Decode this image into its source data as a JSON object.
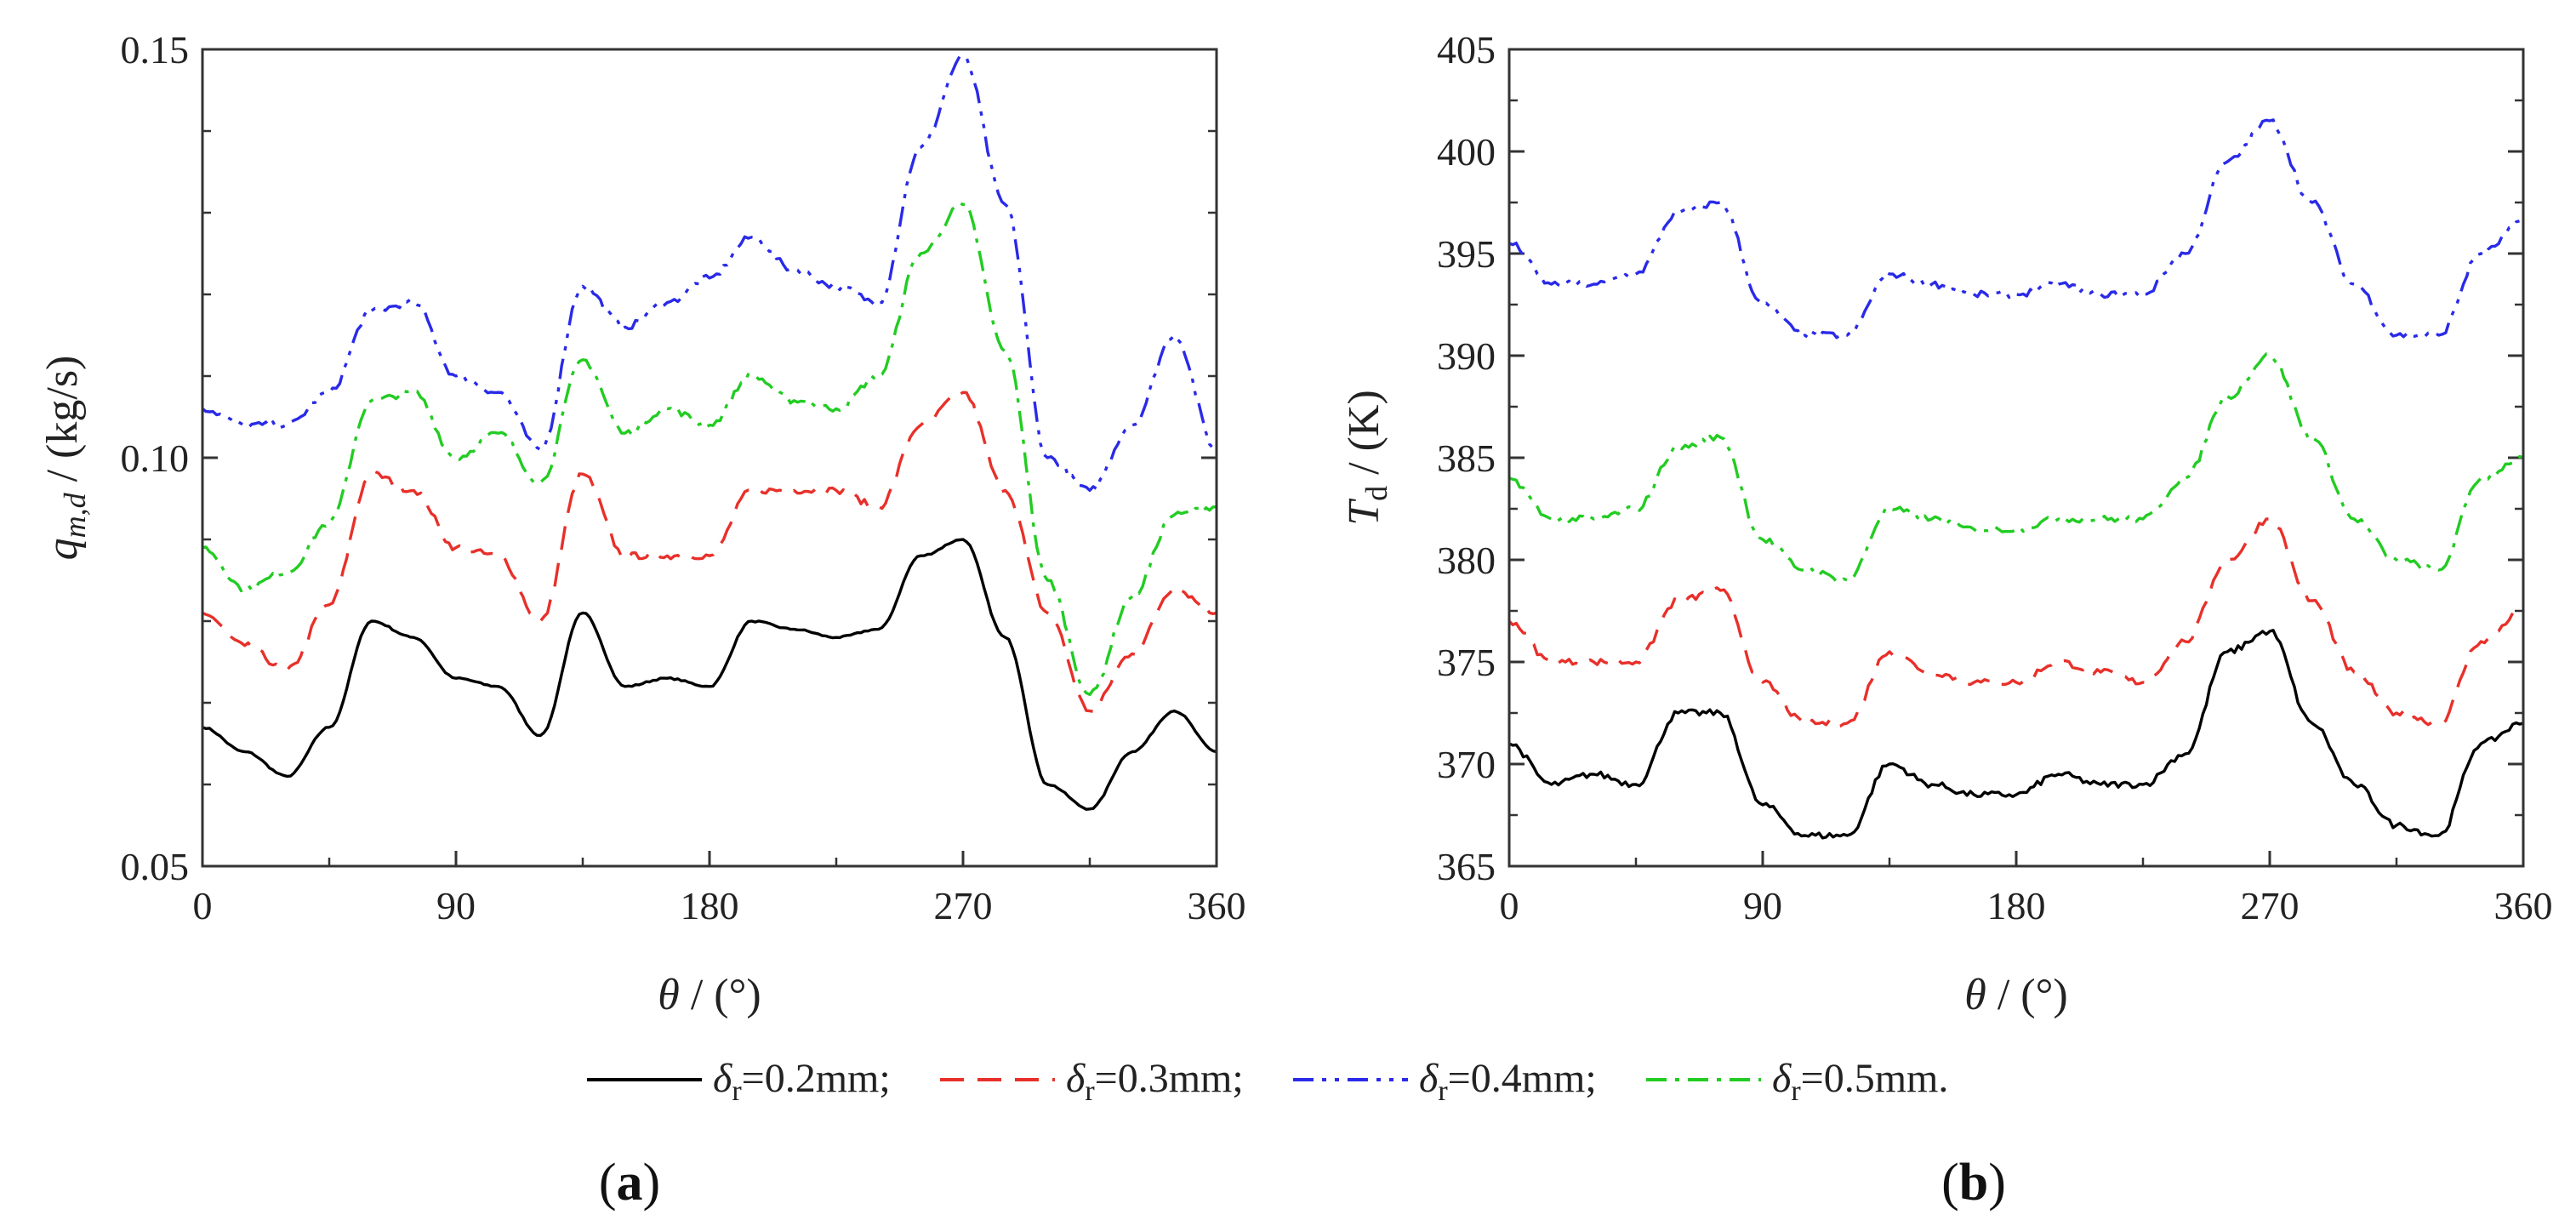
{
  "colors": {
    "delta_0_2": "#000000",
    "delta_0_3": "#e8302a",
    "delta_0_4": "#2a2ae8",
    "delta_0_5": "#22cc22",
    "axis": "#333333"
  },
  "legend": {
    "items": [
      {
        "key": "delta_0_2",
        "symbol": "δ",
        "sub": "r",
        "text": "=0.2mm;",
        "dash": "solid"
      },
      {
        "key": "delta_0_3",
        "symbol": "δ",
        "sub": "r",
        "text": "=0.3mm;",
        "dash": "dash"
      },
      {
        "key": "delta_0_4",
        "symbol": "δ",
        "sub": "r",
        "text": "=0.4mm;",
        "dash": "dashdotdot"
      },
      {
        "key": "delta_0_5",
        "symbol": "δ",
        "sub": "r",
        "text": "=0.5mm.",
        "dash": "dashdot"
      }
    ]
  },
  "chart_data": [
    {
      "type": "line",
      "panel_label": "a",
      "xlabel": {
        "symbol": "θ",
        "text": " / (°)"
      },
      "ylabel": {
        "symbol": "q",
        "sub": "m,d",
        "text": " / (kg/s)"
      },
      "xlim": [
        0,
        360
      ],
      "ylim": [
        0.05,
        0.15
      ],
      "xticks": [
        0,
        90,
        180,
        270,
        360
      ],
      "xtick_labels": [
        "0",
        "90",
        "180",
        "270",
        "360"
      ],
      "yticks": [
        0.05,
        0.1,
        0.15
      ],
      "ytick_labels": [
        "0.05",
        "0.10",
        "0.15"
      ],
      "x": [
        0,
        15,
        30,
        45,
        60,
        75,
        90,
        105,
        120,
        135,
        150,
        165,
        180,
        195,
        210,
        225,
        240,
        255,
        270,
        285,
        300,
        315,
        330,
        345,
        360
      ],
      "series": [
        {
          "name": "δr=0.2mm",
          "key": "delta_0_2",
          "values": [
            0.067,
            0.064,
            0.061,
            0.067,
            0.08,
            0.078,
            0.073,
            0.072,
            0.066,
            0.081,
            0.072,
            0.073,
            0.072,
            0.08,
            0.079,
            0.078,
            0.079,
            0.088,
            0.09,
            0.078,
            0.06,
            0.057,
            0.064,
            0.069,
            0.064
          ]
        },
        {
          "name": "δr=0.3mm",
          "key": "delta_0_3",
          "values": [
            0.081,
            0.077,
            0.074,
            0.082,
            0.098,
            0.096,
            0.089,
            0.088,
            0.08,
            0.098,
            0.088,
            0.088,
            0.088,
            0.096,
            0.096,
            0.096,
            0.094,
            0.104,
            0.108,
            0.096,
            0.081,
            0.069,
            0.076,
            0.084,
            0.081
          ]
        },
        {
          "name": "δr=0.4mm",
          "key": "delta_0_4",
          "values": [
            0.106,
            0.104,
            0.104,
            0.108,
            0.118,
            0.119,
            0.11,
            0.108,
            0.101,
            0.121,
            0.116,
            0.119,
            0.122,
            0.127,
            0.123,
            0.121,
            0.119,
            0.138,
            0.149,
            0.131,
            0.1,
            0.096,
            0.104,
            0.115,
            0.101
          ]
        },
        {
          "name": "δr=0.5mm",
          "key": "delta_0_5",
          "values": [
            0.089,
            0.084,
            0.086,
            0.092,
            0.107,
            0.108,
            0.1,
            0.103,
            0.097,
            0.112,
            0.103,
            0.106,
            0.104,
            0.11,
            0.107,
            0.106,
            0.11,
            0.125,
            0.131,
            0.113,
            0.085,
            0.071,
            0.083,
            0.093,
            0.094
          ]
        }
      ]
    },
    {
      "type": "line",
      "panel_label": "b",
      "xlabel": {
        "symbol": "θ",
        "text": " / (°)"
      },
      "ylabel": {
        "symbol": "T",
        "sub": "d",
        "text": " / (K)"
      },
      "xlim": [
        0,
        360
      ],
      "ylim": [
        365,
        405
      ],
      "xticks": [
        0,
        90,
        180,
        270,
        360
      ],
      "xtick_labels": [
        "0",
        "90",
        "180",
        "270",
        "360"
      ],
      "yticks": [
        365,
        370,
        375,
        380,
        385,
        390,
        395,
        400,
        405
      ],
      "ytick_labels": [
        "365",
        "370",
        "375",
        "380",
        "385",
        "390",
        "395",
        "400",
        "405"
      ],
      "x": [
        0,
        15,
        30,
        45,
        60,
        75,
        90,
        105,
        120,
        135,
        150,
        165,
        180,
        195,
        210,
        225,
        240,
        255,
        270,
        285,
        300,
        315,
        330,
        345,
        360
      ],
      "series": [
        {
          "name": "δr=0.2mm",
          "key": "delta_0_2",
          "values": [
            371.0,
            369.0,
            369.5,
            369.0,
            372.5,
            372.5,
            368.0,
            366.5,
            366.5,
            370.0,
            369.0,
            368.5,
            368.5,
            369.5,
            369.0,
            369.0,
            370.5,
            375.5,
            376.5,
            372.0,
            369.0,
            367.0,
            366.5,
            371.0,
            372.0
          ]
        },
        {
          "name": "δr=0.3mm",
          "key": "delta_0_3",
          "values": [
            377.0,
            375.0,
            375.0,
            375.0,
            378.0,
            378.5,
            374.0,
            372.0,
            372.0,
            375.5,
            374.5,
            374.0,
            374.0,
            375.0,
            374.5,
            374.0,
            376.0,
            380.0,
            382.0,
            378.0,
            374.5,
            372.5,
            372.0,
            376.0,
            377.5
          ]
        },
        {
          "name": "δr=0.4mm",
          "key": "delta_0_4",
          "values": [
            395.5,
            393.5,
            393.5,
            394.0,
            397.0,
            397.5,
            392.5,
            391.0,
            391.0,
            394.0,
            393.5,
            393.0,
            393.0,
            393.5,
            393.0,
            393.0,
            395.0,
            399.5,
            401.5,
            397.5,
            393.5,
            391.0,
            391.0,
            395.0,
            396.5
          ]
        },
        {
          "name": "δr=0.5mm",
          "key": "delta_0_5",
          "values": [
            384.0,
            382.0,
            382.0,
            382.5,
            385.5,
            386.0,
            381.0,
            379.5,
            379.0,
            382.5,
            382.0,
            381.5,
            381.5,
            382.0,
            382.0,
            382.0,
            384.0,
            388.0,
            390.0,
            386.0,
            382.0,
            380.0,
            379.5,
            384.0,
            385.0
          ]
        }
      ]
    }
  ]
}
